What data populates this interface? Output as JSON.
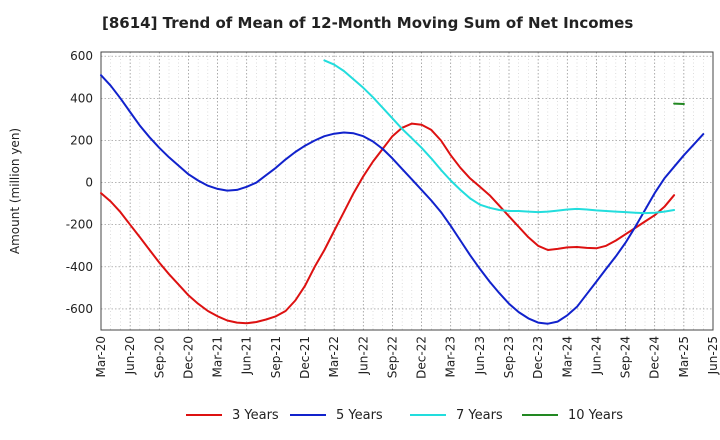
{
  "title": "[8614]  Trend of Mean of 12-Month Moving Sum of Net Incomes",
  "colors": {
    "three_years": "#dd1111",
    "five_years": "#1122cc",
    "seven_years": "#22dddd",
    "ten_years": "#228822",
    "grid": "#888888"
  },
  "chart_data": {
    "type": "line",
    "ylabel": "Amount (million yen)",
    "xlabel": "",
    "ylim": [
      -700,
      620
    ],
    "xlim": [
      "2020-03",
      "2025-06"
    ],
    "yticks": [
      -600,
      -400,
      -200,
      0,
      200,
      400,
      600
    ],
    "xticks": [
      "Mar-20",
      "Jun-20",
      "Sep-20",
      "Dec-20",
      "Mar-21",
      "Jun-21",
      "Sep-21",
      "Dec-21",
      "Mar-22",
      "Jun-22",
      "Sep-22",
      "Dec-22",
      "Mar-23",
      "Jun-23",
      "Sep-23",
      "Dec-23",
      "Mar-24",
      "Jun-24",
      "Sep-24",
      "Dec-24",
      "Mar-25",
      "Jun-25"
    ],
    "grid": true,
    "legend_position": "bottom",
    "series": [
      {
        "name": "3 Years",
        "color": "#dd1111",
        "start": "2020-03",
        "values": [
          -50,
          -90,
          -140,
          -200,
          -260,
          -320,
          -380,
          -435,
          -485,
          -535,
          -575,
          -610,
          -635,
          -655,
          -665,
          -668,
          -662,
          -650,
          -635,
          -610,
          -560,
          -490,
          -400,
          -320,
          -230,
          -140,
          -50,
          30,
          100,
          160,
          220,
          260,
          280,
          275,
          250,
          200,
          130,
          70,
          20,
          -20,
          -60,
          -110,
          -160,
          -210,
          -260,
          -300,
          -320,
          -315,
          -308,
          -306,
          -310,
          -312,
          -300,
          -275,
          -245,
          -215,
          -185,
          -155,
          -115,
          -60
        ]
      },
      {
        "name": "5 Years",
        "color": "#1122cc",
        "start": "2020-03",
        "values": [
          510,
          460,
          400,
          335,
          270,
          215,
          165,
          120,
          80,
          40,
          10,
          -15,
          -30,
          -38,
          -35,
          -20,
          0,
          35,
          70,
          110,
          145,
          175,
          200,
          220,
          232,
          238,
          234,
          220,
          195,
          160,
          115,
          65,
          15,
          -35,
          -85,
          -140,
          -205,
          -275,
          -345,
          -410,
          -470,
          -525,
          -575,
          -615,
          -645,
          -665,
          -670,
          -660,
          -630,
          -590,
          -530,
          -470,
          -410,
          -350,
          -285,
          -210,
          -130,
          -50,
          20,
          75,
          130,
          180,
          230
        ]
      },
      {
        "name": "7 Years",
        "color": "#22dddd",
        "start": "2022-02",
        "values": [
          580,
          560,
          530,
          490,
          450,
          405,
          355,
          305,
          255,
          210,
          165,
          115,
          60,
          10,
          -35,
          -75,
          -105,
          -120,
          -130,
          -135,
          -135,
          -138,
          -140,
          -138,
          -133,
          -128,
          -125,
          -128,
          -132,
          -135,
          -138,
          -140,
          -143,
          -145,
          -143,
          -138,
          -130
        ]
      },
      {
        "name": "10 Years",
        "color": "#228822",
        "start": "2025-02",
        "values": [
          375,
          373
        ]
      }
    ]
  }
}
